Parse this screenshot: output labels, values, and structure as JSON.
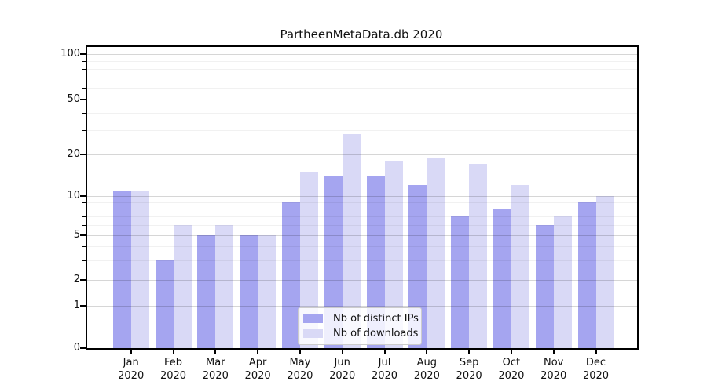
{
  "title": "PartheenMetaData.db 2020",
  "colors": {
    "distinct_ips_bar": "#a5a5f0",
    "downloads_bar": "#d9d9f6",
    "axis": "#000000",
    "background": "#ffffff"
  },
  "legend": {
    "position": "lower center",
    "items": [
      {
        "label": "Nb of distinct IPs",
        "color": "#a5a5f0"
      },
      {
        "label": "Nb of downloads",
        "color": "#d9d9f6"
      }
    ]
  },
  "y_axis": {
    "tick_labels": [
      "100",
      "50",
      "20",
      "10",
      "5",
      "2",
      "1",
      "0"
    ]
  },
  "x_axis": {
    "months": [
      "Jan",
      "Feb",
      "Mar",
      "Apr",
      "May",
      "Jun",
      "Jul",
      "Aug",
      "Sep",
      "Oct",
      "Nov",
      "Dec"
    ],
    "year": "2020"
  },
  "chart_data": {
    "type": "bar",
    "title": "PartheenMetaData.db 2020",
    "categories": [
      "Jan 2020",
      "Feb 2020",
      "Mar 2020",
      "Apr 2020",
      "May 2020",
      "Jun 2020",
      "Jul 2020",
      "Aug 2020",
      "Sep 2020",
      "Oct 2020",
      "Nov 2020",
      "Dec 2020"
    ],
    "series": [
      {
        "name": "Nb of distinct IPs",
        "color": "#a5a5f0",
        "values": [
          11,
          3,
          5,
          5,
          9,
          14,
          14,
          12,
          7,
          8,
          6,
          9
        ]
      },
      {
        "name": "Nb of downloads",
        "color": "#d9d9f6",
        "values": [
          11,
          6,
          6,
          5,
          15,
          28,
          18,
          19,
          17,
          12,
          7,
          10
        ]
      }
    ],
    "xlabel": "",
    "ylabel": "",
    "yscale": "log-like with linear segment to 0",
    "y_ticks": [
      0,
      1,
      2,
      5,
      10,
      20,
      50,
      100
    ],
    "y_minor_ticks": [
      3,
      4,
      6,
      7,
      8,
      9,
      30,
      40,
      60,
      70,
      80,
      90
    ],
    "ylim": [
      0,
      115
    ],
    "grid": true,
    "legend_position": "lower center"
  }
}
